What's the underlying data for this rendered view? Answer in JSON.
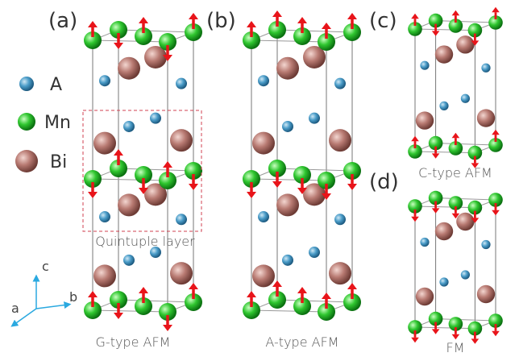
{
  "legend": [
    "A",
    "Mn",
    "Bi"
  ],
  "panels": [
    {
      "label": "(a)",
      "caption": "G-type AFM"
    },
    {
      "label": "(b)",
      "caption": "A-type AFM"
    },
    {
      "label": "(c)",
      "caption": "C-type AFM"
    },
    {
      "label": "(d)",
      "caption": "FM"
    }
  ],
  "annotation": "Quintuple layer",
  "axes": [
    "a",
    "b",
    "c"
  ]
}
